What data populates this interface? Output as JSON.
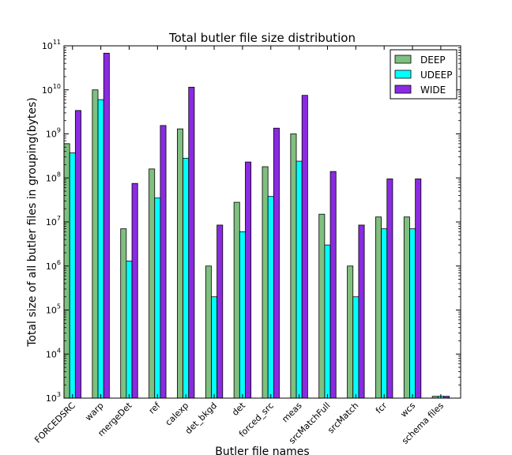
{
  "chart_data": {
    "type": "bar",
    "title": "Total butler file size distribution",
    "xlabel": "Butler file names",
    "ylabel": "Total size of all butler files in grouping(bytes)",
    "yscale": "log",
    "ylim": [
      1000,
      100000000000
    ],
    "grid": false,
    "legend_position": "top-right",
    "categories": [
      "FORCEDSRC",
      "warp",
      "mergeDet",
      "ref",
      "calexp",
      "det_bkgd",
      "det",
      "forced_src",
      "meas",
      "srcMatchFull",
      "srcMatch",
      "fcr",
      "wcs",
      "schema files"
    ],
    "series": [
      {
        "name": "DEEP",
        "color": "#7fbf7f",
        "values": [
          600000000,
          10000000000,
          7000000,
          160000000,
          1300000000,
          1000000,
          28000000,
          180000000,
          1000000000,
          15000000,
          1000000,
          13000000,
          13000000,
          1100
        ]
      },
      {
        "name": "UDEEP",
        "color": "#00ffff",
        "values": [
          370000000,
          6000000000,
          1300000,
          35000000,
          280000000,
          200000,
          6000000,
          38000000,
          240000000,
          3000000,
          200000,
          7000000,
          7000000,
          1100
        ]
      },
      {
        "name": "WIDE",
        "color": "#8a2be2",
        "values": [
          3400000000,
          68000000000,
          75000000,
          1550000000,
          11500000000,
          8500000,
          230000000,
          1350000000,
          7500000000,
          140000000,
          8500000,
          95000000,
          95000000,
          1100
        ]
      }
    ],
    "ytick_exponents": [
      3,
      4,
      5,
      6,
      7,
      8,
      9,
      10,
      11
    ]
  }
}
